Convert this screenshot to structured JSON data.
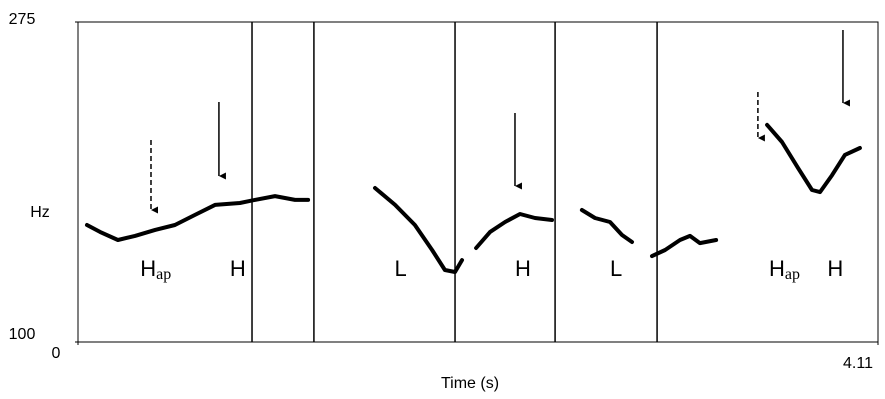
{
  "chart_data": {
    "type": "line",
    "xlabel": "Time (s)",
    "ylabel": "Hz",
    "xlim": [
      0,
      4.11
    ],
    "xticks": [
      0,
      4.11
    ],
    "ylim": [
      100,
      275
    ],
    "yticks": [
      100,
      275
    ],
    "series": [
      {
        "color": "#000000",
        "x": [
          0.046,
          0.113,
          0.205,
          0.293,
          0.396,
          0.498,
          0.601,
          0.704,
          0.832,
          0.909,
          1.012,
          1.115,
          1.182,
          null,
          1.526,
          1.629,
          1.731,
          1.819,
          1.885,
          1.937,
          1.973,
          null,
          2.045,
          2.117,
          2.194,
          2.271,
          2.348,
          2.435,
          null,
          2.589,
          2.656,
          2.733,
          2.795,
          2.846,
          null,
          2.949,
          3.016,
          3.093,
          3.144,
          3.195,
          3.278,
          null,
          3.54,
          3.617,
          3.699,
          3.771,
          3.812,
          3.874,
          3.94,
          4.017
        ],
        "values": [
          164,
          160.2,
          155.8,
          158,
          161.3,
          164,
          169.5,
          175,
          176,
          177.7,
          179.8,
          177.7,
          177.7,
          null,
          184.2,
          175,
          164,
          150.3,
          139.4,
          138.3,
          144.8,
          null,
          151.4,
          160.2,
          165.6,
          170,
          167.8,
          166.7,
          null,
          172.2,
          167.8,
          165.6,
          158.5,
          154.7,
          null,
          147,
          150.3,
          155.8,
          158,
          154.1,
          155.8,
          null,
          218.7,
          209.4,
          195.2,
          183.1,
          182,
          191.3,
          202.3,
          206.1
        ]
      }
    ],
    "boundaries": [
      0.894,
      1.212,
      1.937,
      2.451,
      2.975
    ],
    "arrows": [
      {
        "x": 0.375,
        "style": "dashed"
      },
      {
        "x": 0.724,
        "style": "solid"
      },
      {
        "x": 2.245,
        "style": "solid"
      },
      {
        "x": 3.493,
        "style": "dashed"
      },
      {
        "x": 3.93,
        "style": "solid"
      }
    ],
    "tones": [
      {
        "x": 0.32,
        "text": "H",
        "sub": "ap"
      },
      {
        "x": 0.78,
        "text": "H"
      },
      {
        "x": 1.626,
        "text": "L"
      },
      {
        "x": 2.245,
        "text": "H"
      },
      {
        "x": 2.733,
        "text": "L"
      },
      {
        "x": 3.55,
        "text": "H",
        "sub": "ap"
      },
      {
        "x": 3.85,
        "text": "H"
      }
    ]
  }
}
